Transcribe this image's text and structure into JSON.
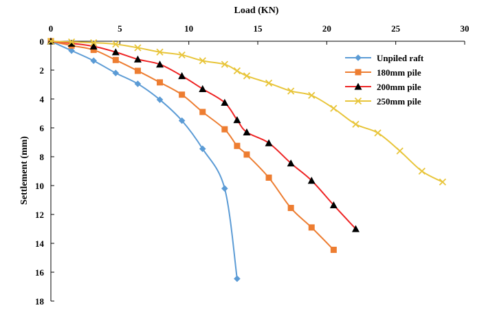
{
  "chart_data": {
    "type": "scatter",
    "title": "",
    "xlabel": "Load (KN)",
    "ylabel": "Settlement (mm)",
    "xlim": [
      0,
      30
    ],
    "ylim": [
      0,
      18
    ],
    "x_axis_position": "top",
    "y_axis_inverted": true,
    "x_ticks": [
      0,
      5,
      10,
      15,
      20,
      25,
      30
    ],
    "y_ticks": [
      0,
      2,
      4,
      6,
      8,
      10,
      12,
      14,
      16,
      18
    ],
    "grid": false,
    "legend_position": "top-right",
    "series": [
      {
        "name": "Unpiled raft",
        "color": "#5b9bd5",
        "marker": "diamond",
        "x": [
          0,
          1.5,
          3.1,
          4.7,
          6.3,
          7.9,
          9.5,
          11.0,
          12.6,
          13.5
        ],
        "y": [
          0,
          0.65,
          1.35,
          2.2,
          2.95,
          4.05,
          5.5,
          7.45,
          10.2,
          16.45
        ]
      },
      {
        "name": "180mm pile",
        "color": "#ed7d31",
        "marker": "square",
        "x": [
          0,
          1.5,
          3.1,
          4.7,
          6.3,
          7.9,
          9.5,
          11.0,
          12.6,
          13.5,
          14.2,
          15.8,
          17.4,
          18.9,
          20.5
        ],
        "y": [
          0,
          0.3,
          0.6,
          1.3,
          2.05,
          2.85,
          3.7,
          4.9,
          6.1,
          7.25,
          7.85,
          9.45,
          11.55,
          12.9,
          14.45
        ]
      },
      {
        "name": "200mm pile",
        "color": "#ee2424",
        "marker": "triangle",
        "x": [
          0,
          1.5,
          3.1,
          4.7,
          6.3,
          7.9,
          9.5,
          11.0,
          12.6,
          13.5,
          14.2,
          15.8,
          17.4,
          18.9,
          20.5,
          22.1
        ],
        "y": [
          0,
          0.15,
          0.35,
          0.75,
          1.25,
          1.6,
          2.4,
          3.3,
          4.25,
          5.45,
          6.3,
          7.05,
          8.45,
          9.65,
          11.35,
          13.0
        ]
      },
      {
        "name": "250mm pile",
        "color": "#e8c53a",
        "marker": "x",
        "x": [
          0,
          1.5,
          3.1,
          4.7,
          6.3,
          7.9,
          9.5,
          11.0,
          12.6,
          13.5,
          14.2,
          15.8,
          17.4,
          18.9,
          20.5,
          22.1,
          23.7,
          25.3,
          26.9,
          28.4
        ],
        "y": [
          0,
          0.05,
          0.1,
          0.2,
          0.45,
          0.75,
          0.95,
          1.35,
          1.6,
          2.05,
          2.4,
          2.9,
          3.45,
          3.75,
          4.65,
          5.75,
          6.35,
          7.6,
          9.0,
          9.75
        ]
      }
    ]
  }
}
